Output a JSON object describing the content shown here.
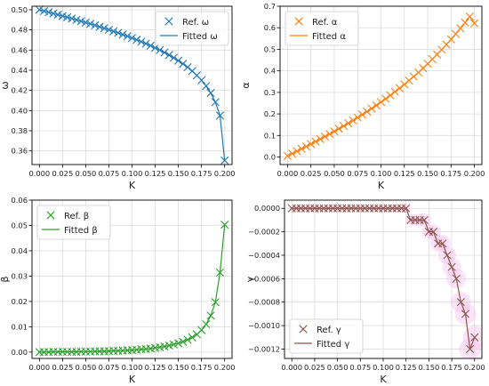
{
  "chart_data": [
    {
      "type": "line",
      "xlabel": "K",
      "ylabel": "ω",
      "xlim": [
        -0.008,
        0.208
      ],
      "ylim": [
        0.3465,
        0.5035
      ],
      "xticks": [
        0.0,
        0.025,
        0.05,
        0.075,
        0.1,
        0.125,
        0.15,
        0.175,
        0.2
      ],
      "xtick_labels": [
        "0.000",
        "0.025",
        "0.050",
        "0.075",
        "0.100",
        "0.125",
        "0.150",
        "0.175",
        "0.200"
      ],
      "yticks": [
        0.36,
        0.38,
        0.4,
        0.42,
        0.44,
        0.46,
        0.48,
        0.5
      ],
      "ytick_labels": [
        "0.36",
        "0.38",
        "0.40",
        "0.42",
        "0.44",
        "0.46",
        "0.48",
        "0.50"
      ],
      "grid": true,
      "legend": "top-right",
      "color": "#1f77b4",
      "band_color": "",
      "x": [
        0.0,
        0.005,
        0.01,
        0.015,
        0.02,
        0.025,
        0.03,
        0.035,
        0.04,
        0.045,
        0.05,
        0.055,
        0.06,
        0.065,
        0.07,
        0.075,
        0.08,
        0.085,
        0.09,
        0.095,
        0.1,
        0.105,
        0.11,
        0.115,
        0.12,
        0.125,
        0.13,
        0.135,
        0.14,
        0.145,
        0.15,
        0.155,
        0.16,
        0.165,
        0.17,
        0.175,
        0.18,
        0.185,
        0.19,
        0.195,
        0.2
      ],
      "series": [
        {
          "name": "Ref. ω",
          "style": "marker",
          "values": [
            0.5,
            0.4987,
            0.4975,
            0.4963,
            0.4951,
            0.4938,
            0.4926,
            0.4913,
            0.49,
            0.4887,
            0.4873,
            0.486,
            0.4846,
            0.4831,
            0.4817,
            0.4802,
            0.4786,
            0.4771,
            0.4754,
            0.4738,
            0.472,
            0.4702,
            0.4683,
            0.4664,
            0.4644,
            0.4622,
            0.46,
            0.4576,
            0.4551,
            0.4524,
            0.4495,
            0.4464,
            0.443,
            0.4392,
            0.435,
            0.4301,
            0.4244,
            0.4175,
            0.4084,
            0.3951,
            0.3505
          ]
        },
        {
          "name": "Fitted ω",
          "style": "line",
          "values": [
            0.5,
            0.4987,
            0.4975,
            0.4963,
            0.4951,
            0.4938,
            0.4926,
            0.4913,
            0.49,
            0.4887,
            0.4873,
            0.486,
            0.4846,
            0.4831,
            0.4817,
            0.4802,
            0.4786,
            0.4771,
            0.4754,
            0.4738,
            0.472,
            0.4702,
            0.4683,
            0.4664,
            0.4644,
            0.4622,
            0.46,
            0.4576,
            0.4551,
            0.4524,
            0.4495,
            0.4464,
            0.443,
            0.4392,
            0.435,
            0.4301,
            0.4244,
            0.4175,
            0.4084,
            0.3951,
            0.3505
          ]
        }
      ]
    },
    {
      "type": "line",
      "xlabel": "K",
      "ylabel": "α",
      "xlim": [
        -0.008,
        0.208
      ],
      "ylim": [
        -0.035,
        0.7
      ],
      "xticks": [
        0.0,
        0.025,
        0.05,
        0.075,
        0.1,
        0.125,
        0.15,
        0.175,
        0.2
      ],
      "xtick_labels": [
        "0.000",
        "0.025",
        "0.050",
        "0.075",
        "0.100",
        "0.125",
        "0.150",
        "0.175",
        "0.200"
      ],
      "yticks": [
        0.0,
        0.1,
        0.2,
        0.3,
        0.4,
        0.5,
        0.6,
        0.7
      ],
      "ytick_labels": [
        "0.0",
        "0.1",
        "0.2",
        "0.3",
        "0.4",
        "0.5",
        "0.6",
        "0.7"
      ],
      "grid": true,
      "legend": "top-left",
      "color": "#ff7f0e",
      "band_color": "",
      "x": [
        0.0,
        0.005,
        0.01,
        0.015,
        0.02,
        0.025,
        0.03,
        0.035,
        0.04,
        0.045,
        0.05,
        0.055,
        0.06,
        0.065,
        0.07,
        0.075,
        0.08,
        0.085,
        0.09,
        0.095,
        0.1,
        0.105,
        0.11,
        0.115,
        0.12,
        0.125,
        0.13,
        0.135,
        0.14,
        0.145,
        0.15,
        0.155,
        0.16,
        0.165,
        0.17,
        0.175,
        0.18,
        0.185,
        0.19,
        0.195,
        0.2
      ],
      "series": [
        {
          "name": "Ref. α",
          "style": "marker",
          "values": [
            0.005,
            0.0159,
            0.0268,
            0.0379,
            0.049,
            0.0603,
            0.0717,
            0.0832,
            0.0949,
            0.1068,
            0.1189,
            0.1312,
            0.1438,
            0.1566,
            0.1697,
            0.183,
            0.1967,
            0.2107,
            0.225,
            0.2397,
            0.2548,
            0.2703,
            0.2863,
            0.3027,
            0.3196,
            0.337,
            0.355,
            0.3735,
            0.3927,
            0.4125,
            0.4329,
            0.454,
            0.4759,
            0.4985,
            0.5219,
            0.5461,
            0.5712,
            0.5972,
            0.6241,
            0.6521,
            0.621
          ]
        },
        {
          "name": "Fitted α",
          "style": "line",
          "values": [
            0.005,
            0.0159,
            0.0268,
            0.0379,
            0.049,
            0.0603,
            0.0717,
            0.0832,
            0.0949,
            0.1068,
            0.1189,
            0.1312,
            0.1438,
            0.1566,
            0.1697,
            0.183,
            0.1967,
            0.2107,
            0.225,
            0.2397,
            0.2548,
            0.2703,
            0.2863,
            0.3027,
            0.3196,
            0.337,
            0.355,
            0.3735,
            0.3927,
            0.4125,
            0.4329,
            0.454,
            0.4759,
            0.4985,
            0.5219,
            0.5461,
            0.5712,
            0.5972,
            0.6241,
            0.6521,
            0.621
          ]
        }
      ]
    },
    {
      "type": "line",
      "xlabel": "K",
      "ylabel": "β",
      "xlim": [
        -0.008,
        0.208
      ],
      "ylim": [
        -0.0025,
        0.06
      ],
      "xticks": [
        0.0,
        0.025,
        0.05,
        0.075,
        0.1,
        0.125,
        0.15,
        0.175,
        0.2
      ],
      "xtick_labels": [
        "0.000",
        "0.025",
        "0.050",
        "0.075",
        "0.100",
        "0.125",
        "0.150",
        "0.175",
        "0.200"
      ],
      "yticks": [
        0.0,
        0.01,
        0.02,
        0.03,
        0.04,
        0.05,
        0.06
      ],
      "ytick_labels": [
        "0.00",
        "0.01",
        "0.02",
        "0.03",
        "0.04",
        "0.05",
        "0.06"
      ],
      "grid": true,
      "legend": "top-left",
      "color": "#2ca02c",
      "band_color": "",
      "x": [
        0.0,
        0.005,
        0.01,
        0.015,
        0.02,
        0.025,
        0.03,
        0.035,
        0.04,
        0.045,
        0.05,
        0.055,
        0.06,
        0.065,
        0.07,
        0.075,
        0.08,
        0.085,
        0.09,
        0.095,
        0.1,
        0.105,
        0.11,
        0.115,
        0.12,
        0.125,
        0.13,
        0.135,
        0.14,
        0.145,
        0.15,
        0.155,
        0.16,
        0.165,
        0.17,
        0.175,
        0.18,
        0.185,
        0.19,
        0.195,
        0.2
      ],
      "series": [
        {
          "name": "Ref. β",
          "style": "marker",
          "values": [
            0.0,
            0.0,
            0.0,
            0.0001,
            0.0001,
            0.0001,
            0.0001,
            0.0001,
            0.0001,
            0.0002,
            0.0002,
            0.0002,
            0.0003,
            0.0003,
            0.0003,
            0.0004,
            0.0005,
            0.0005,
            0.0006,
            0.0007,
            0.0008,
            0.0009,
            0.0011,
            0.0012,
            0.0014,
            0.0017,
            0.0019,
            0.0022,
            0.0026,
            0.003,
            0.0035,
            0.0041,
            0.0049,
            0.0058,
            0.007,
            0.0087,
            0.011,
            0.0144,
            0.0197,
            0.0314,
            0.0503
          ]
        },
        {
          "name": "Fitted β",
          "style": "line",
          "values": [
            0.0,
            0.0,
            0.0,
            0.0001,
            0.0001,
            0.0001,
            0.0001,
            0.0001,
            0.0001,
            0.0002,
            0.0002,
            0.0002,
            0.0003,
            0.0003,
            0.0003,
            0.0004,
            0.0005,
            0.0005,
            0.0006,
            0.0007,
            0.0008,
            0.0009,
            0.0011,
            0.0012,
            0.0014,
            0.0017,
            0.0019,
            0.0022,
            0.0026,
            0.003,
            0.0035,
            0.0041,
            0.0049,
            0.0058,
            0.007,
            0.0087,
            0.011,
            0.0144,
            0.0197,
            0.0314,
            0.0503
          ]
        }
      ]
    },
    {
      "type": "line",
      "xlabel": "K",
      "ylabel": "γ",
      "xlim": [
        -0.008,
        0.208
      ],
      "ylim": [
        -0.00128,
        7e-05
      ],
      "xticks": [
        0.0,
        0.025,
        0.05,
        0.075,
        0.1,
        0.125,
        0.15,
        0.175,
        0.2
      ],
      "xtick_labels": [
        "0.000",
        "0.025",
        "0.050",
        "0.075",
        "0.100",
        "0.125",
        "0.150",
        "0.175",
        "0.200"
      ],
      "yticks": [
        0.0,
        -0.0002,
        -0.0004,
        -0.0006,
        -0.0008,
        -0.001,
        -0.0012
      ],
      "ytick_labels": [
        "0.0000",
        "−0.0002",
        "−0.0004",
        "−0.0006",
        "−0.0008",
        "−0.0010",
        "−0.0012"
      ],
      "grid": true,
      "legend": "bottom-left",
      "color": "#8c564b",
      "band_color": "#f6c4ee",
      "x": [
        0.0,
        0.005,
        0.01,
        0.015,
        0.02,
        0.025,
        0.03,
        0.035,
        0.04,
        0.045,
        0.05,
        0.055,
        0.06,
        0.065,
        0.07,
        0.075,
        0.08,
        0.085,
        0.09,
        0.095,
        0.1,
        0.105,
        0.11,
        0.115,
        0.12,
        0.125,
        0.13,
        0.135,
        0.14,
        0.145,
        0.15,
        0.155,
        0.16,
        0.165,
        0.17,
        0.175,
        0.18,
        0.185,
        0.19,
        0.195,
        0.2
      ],
      "series": [
        {
          "name": "Ref. γ",
          "style": "marker",
          "values": [
            0.0,
            0.0,
            0.0,
            0.0,
            0.0,
            0.0,
            0.0,
            0.0,
            0.0,
            0.0,
            0.0,
            0.0,
            0.0,
            0.0,
            0.0,
            0.0,
            0.0,
            0.0,
            0.0,
            -0.0,
            -0.0,
            -0.0,
            -0.0,
            -0.0,
            -0.0,
            -0.0,
            -0.0001,
            -0.0001,
            -0.0001,
            -0.0001,
            -0.0002,
            -0.0002,
            -0.0003,
            -0.0003,
            -0.0004,
            -0.0005,
            -0.0006,
            -0.0008,
            -0.0009,
            -0.0012,
            -0.0011
          ]
        },
        {
          "name": "Fitted γ",
          "style": "line",
          "values": [
            0.0,
            0.0,
            0.0,
            0.0,
            0.0,
            0.0,
            0.0,
            0.0,
            0.0,
            0.0,
            0.0,
            0.0,
            0.0,
            0.0,
            0.0,
            0.0,
            0.0,
            0.0,
            0.0,
            -0.0,
            -0.0,
            -0.0,
            -0.0,
            -0.0,
            -0.0,
            -0.0,
            -0.0001,
            -0.0001,
            -0.0001,
            -0.0001,
            -0.0002,
            -0.0002,
            -0.0003,
            -0.0003,
            -0.0004,
            -0.0005,
            -0.0006,
            -0.0008,
            -0.0009,
            -0.0012,
            -0.0011
          ]
        }
      ]
    }
  ]
}
